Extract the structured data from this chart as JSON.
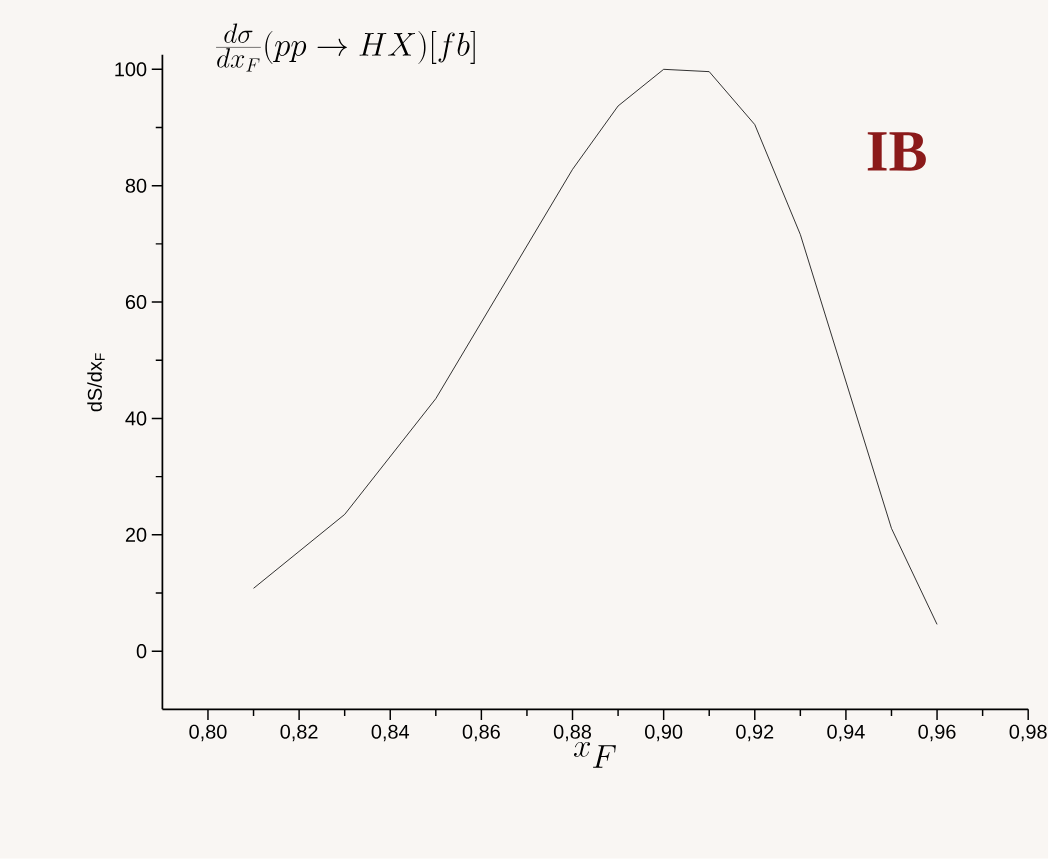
{
  "chart_data": {
    "type": "line",
    "title": "\\frac{d\\sigma}{dx_F}(pp \\rightarrow HX)[fb]",
    "xlabel": "x_F",
    "ylabel": "dS/dx$_{F}$",
    "annotations": [
      "IB"
    ],
    "x": [
      0.81,
      0.83,
      0.85,
      0.88,
      0.89,
      0.9,
      0.91,
      0.92,
      0.93,
      0.95,
      0.96
    ],
    "series": [
      {
        "color": "#000000",
        "values": [
          10.8,
          23.5,
          43.4,
          82.8,
          93.7,
          100.0,
          99.6,
          90.5,
          71.6,
          21.1,
          4.6
        ]
      }
    ],
    "xlim": [
      0.79,
      0.98
    ],
    "ylim": [
      -10,
      102.5
    ],
    "xticks": [
      {
        "value": 0.8,
        "label": "0,80"
      },
      {
        "value": 0.82,
        "label": "0,82"
      },
      {
        "value": 0.84,
        "label": "0,84"
      },
      {
        "value": 0.86,
        "label": "0,86"
      },
      {
        "value": 0.88,
        "label": "0,88"
      },
      {
        "value": 0.9,
        "label": "0,90"
      },
      {
        "value": 0.92,
        "label": "0,92"
      },
      {
        "value": 0.94,
        "label": "0,94"
      },
      {
        "value": 0.96,
        "label": "0,96"
      },
      {
        "value": 0.98,
        "label": "0,98"
      }
    ],
    "yticks": [
      0,
      20,
      40,
      60,
      80,
      100
    ],
    "grid": false,
    "marker": "none",
    "line_style": "solid"
  }
}
